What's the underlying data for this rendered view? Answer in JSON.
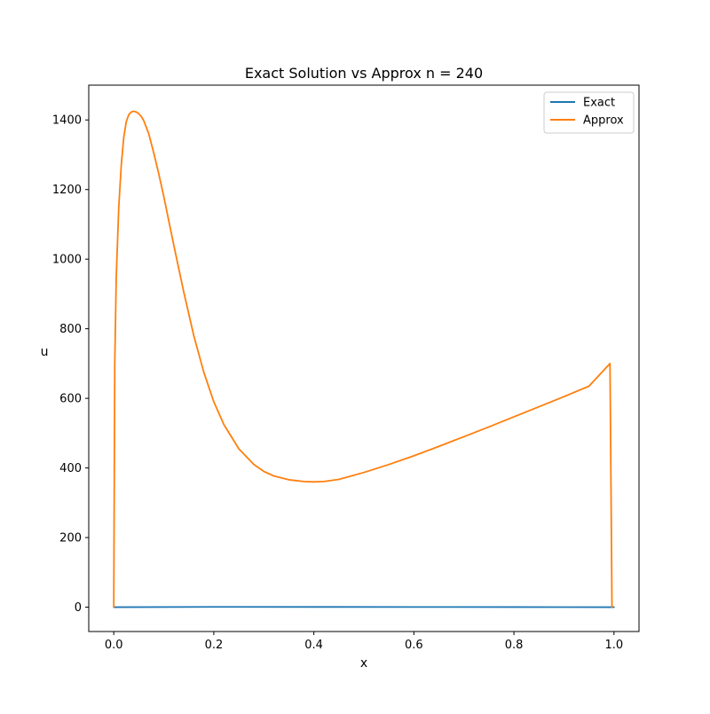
{
  "chart_data": {
    "type": "line",
    "title": "Exact Solution vs Approx n = 240",
    "xlabel": "x",
    "ylabel": "u",
    "xlim": [
      -0.05,
      1.05
    ],
    "ylim": [
      -70,
      1500
    ],
    "xticks": [
      0.0,
      0.2,
      0.4,
      0.6,
      0.8,
      1.0
    ],
    "xtick_labels": [
      "0.0",
      "0.2",
      "0.4",
      "0.6",
      "0.8",
      "1.0"
    ],
    "yticks": [
      0,
      200,
      400,
      600,
      800,
      1000,
      1200,
      1400
    ],
    "ytick_labels": [
      "0",
      "200",
      "400",
      "600",
      "800",
      "1000",
      "1200",
      "1400"
    ],
    "grid": false,
    "legend_position": "top-right",
    "series": [
      {
        "name": "Exact",
        "color": "#1f77b4",
        "x": [
          0.0,
          0.2,
          0.4,
          0.6,
          0.8,
          1.0
        ],
        "y": [
          0,
          0.8,
          0.6,
          0.4,
          0.2,
          0
        ]
      },
      {
        "name": "Approx",
        "color": "#ff7f0e",
        "x": [
          0.0,
          0.002,
          0.005,
          0.01,
          0.015,
          0.02,
          0.025,
          0.03,
          0.035,
          0.04,
          0.045,
          0.05,
          0.055,
          0.06,
          0.07,
          0.08,
          0.09,
          0.1,
          0.12,
          0.14,
          0.16,
          0.18,
          0.2,
          0.22,
          0.25,
          0.28,
          0.3,
          0.32,
          0.35,
          0.38,
          0.4,
          0.42,
          0.45,
          0.5,
          0.55,
          0.6,
          0.65,
          0.7,
          0.75,
          0.8,
          0.85,
          0.9,
          0.95,
          0.992,
          0.996
        ],
        "y": [
          0,
          700,
          950,
          1150,
          1270,
          1350,
          1395,
          1415,
          1423,
          1425,
          1423,
          1418,
          1410,
          1398,
          1360,
          1305,
          1245,
          1180,
          1040,
          905,
          780,
          675,
          590,
          525,
          455,
          410,
          390,
          377,
          366,
          361,
          360,
          361,
          367,
          387,
          410,
          435,
          462,
          490,
          518,
          547,
          576,
          605,
          635,
          700,
          0
        ]
      }
    ]
  }
}
